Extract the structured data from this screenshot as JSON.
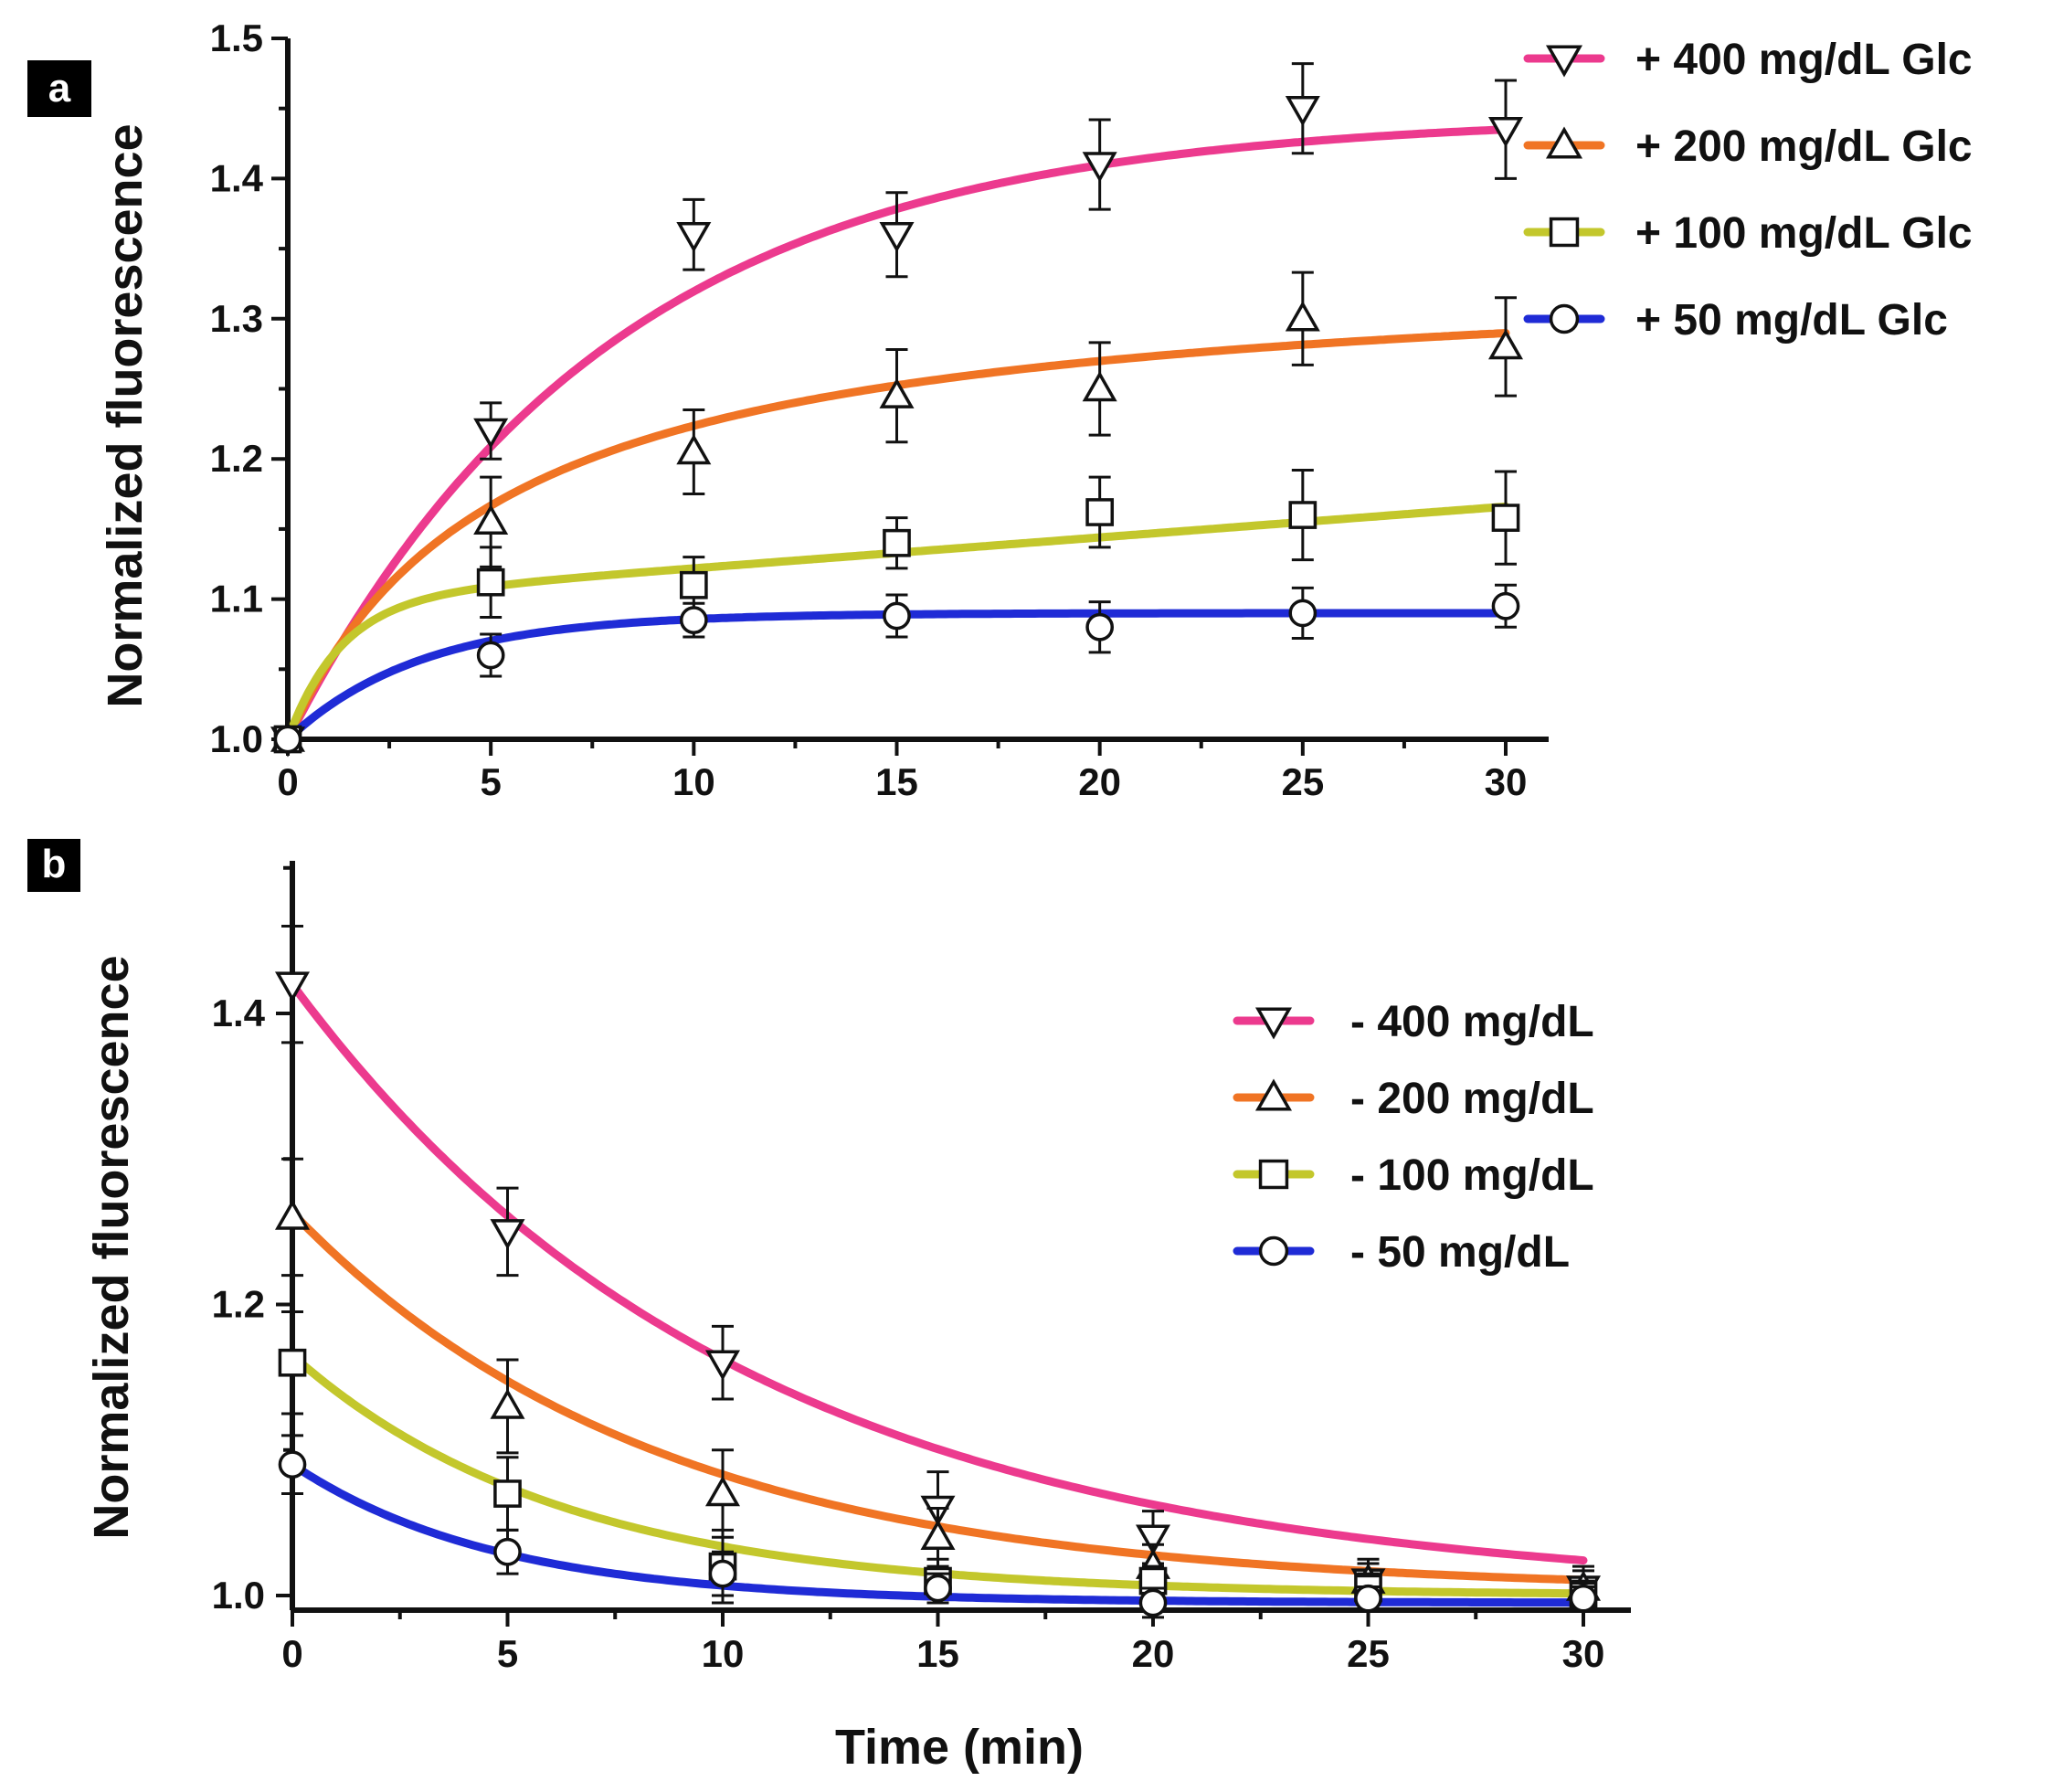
{
  "figure": {
    "xlabel_shared": "Time (min)"
  },
  "chart_data": [
    {
      "type": "line",
      "panel_label": "a",
      "title": "",
      "xlabel": "",
      "ylabel": "Normalized fluorescence",
      "xlim": [
        0,
        31
      ],
      "ylim": [
        1.0,
        1.5
      ],
      "xticks": [
        0,
        5,
        10,
        15,
        20,
        25,
        30
      ],
      "xtick_labels": [
        "0",
        "5",
        "10",
        "15",
        "20",
        "25",
        "30"
      ],
      "yticks": [
        1.0,
        1.1,
        1.2,
        1.3,
        1.4,
        1.5
      ],
      "ytick_labels": [
        "1.0",
        "1.1",
        "1.2",
        "1.3",
        "1.4",
        "1.5"
      ],
      "grid": false,
      "legend_position": "top-right",
      "x": [
        0,
        5,
        10,
        15,
        20,
        25,
        30
      ],
      "series": [
        {
          "name": "+ 400 mg/dL Glc",
          "color": "#ec3a8e",
          "marker": "triangle-down",
          "values": [
            1.0,
            1.22,
            1.36,
            1.36,
            1.41,
            1.45,
            1.435
          ],
          "errors": [
            0,
            0.02,
            0.025,
            0.03,
            0.032,
            0.032,
            0.035
          ],
          "fit": {
            "model": "a + b*(1-exp(-t/tau))",
            "a": 1.0,
            "b": 0.445,
            "tau": 7.9
          }
        },
        {
          "name": "+ 200 mg/dL Glc",
          "color": "#f07424",
          "marker": "triangle-up",
          "values": [
            1.0,
            1.155,
            1.205,
            1.245,
            1.25,
            1.3,
            1.28
          ],
          "errors": [
            0,
            0.032,
            0.03,
            0.033,
            0.033,
            0.033,
            0.035
          ],
          "fit": {
            "model": "a + b*t/(k+t)",
            "a": 1.0,
            "b": 0.34,
            "k": 5.2
          }
        },
        {
          "name": "+ 100 mg/dL Glc",
          "color": "#c3c72c",
          "marker": "square",
          "values": [
            1.0,
            1.112,
            1.11,
            1.14,
            1.162,
            1.16,
            1.158
          ],
          "errors": [
            0,
            0.025,
            0.02,
            0.018,
            0.025,
            0.032,
            0.033
          ],
          "fit": {
            "model": "a + b*(1-exp(-t/tau)) + c*t",
            "a": 1.0,
            "b": 0.1,
            "tau": 1.3,
            "c": 0.0022
          }
        },
        {
          "name": "+ 50 mg/dL Glc",
          "color": "#1f2bd6",
          "marker": "circle",
          "values": [
            1.0,
            1.06,
            1.085,
            1.088,
            1.08,
            1.09,
            1.095
          ],
          "errors": [
            0,
            0.015,
            0.012,
            0.015,
            0.018,
            0.018,
            0.015
          ],
          "fit": {
            "model": "a + b*(1-exp(-t/tau))",
            "a": 1.0,
            "b": 0.09,
            "tau": 3.3
          }
        }
      ]
    },
    {
      "type": "line",
      "panel_label": "b",
      "title": "",
      "xlabel": "Time (min)",
      "ylabel": "Normalized fluorescence",
      "xlim": [
        0,
        31
      ],
      "ylim": [
        0.98,
        1.51
      ],
      "xticks": [
        0,
        5,
        10,
        15,
        20,
        25,
        30
      ],
      "xtick_labels": [
        "0",
        "5",
        "10",
        "15",
        "20",
        "25",
        "30"
      ],
      "yticks": [
        1.0,
        1.2,
        1.4
      ],
      "ytick_labels": [
        "1.0",
        "1.2",
        "1.4"
      ],
      "grid": false,
      "legend_position": "right",
      "x": [
        0,
        5,
        10,
        15,
        20,
        25,
        30
      ],
      "series": [
        {
          "name": "- 400 mg/dL",
          "color": "#ec3a8e",
          "marker": "triangle-down",
          "values": [
            1.42,
            1.25,
            1.16,
            1.06,
            1.04,
            1.01,
            1.005
          ],
          "errors": [
            0.04,
            0.03,
            0.025,
            0.025,
            0.018,
            0.015,
            0.015
          ],
          "fit": {
            "model": "a + b*exp(-t/tau)",
            "a": 1.0,
            "b": 0.42,
            "tau": 10.5
          }
        },
        {
          "name": "- 200 mg/dL",
          "color": "#f07424",
          "marker": "triangle-up",
          "values": [
            1.26,
            1.13,
            1.07,
            1.04,
            1.02,
            1.01,
            1.005
          ],
          "errors": [
            0.04,
            0.032,
            0.03,
            0.02,
            0.015,
            0.012,
            0.012
          ],
          "fit": {
            "model": "a + b*exp(-t/tau)",
            "a": 1.003,
            "b": 0.26,
            "tau": 8.5
          }
        },
        {
          "name": "- 100 mg/dL",
          "color": "#c3c72c",
          "marker": "square",
          "values": [
            1.16,
            1.07,
            1.02,
            1.01,
            1.01,
            1.005,
            1.0
          ],
          "errors": [
            0.035,
            0.025,
            0.025,
            0.015,
            0.01,
            0.01,
            0.01
          ],
          "fit": {
            "model": "a + b*exp(-t/tau)",
            "a": 1.0,
            "b": 0.165,
            "tau": 6.3
          }
        },
        {
          "name": "- 50 mg/dL",
          "color": "#1f2bd6",
          "marker": "circle",
          "values": [
            1.09,
            1.03,
            1.015,
            1.005,
            0.995,
            0.998,
            0.998
          ],
          "errors": [
            0.02,
            0.015,
            0.015,
            0.01,
            0.01,
            0.008,
            0.008
          ],
          "fit": {
            "model": "a + b*exp(-t/tau)",
            "a": 0.995,
            "b": 0.095,
            "tau": 4.8
          }
        }
      ]
    }
  ]
}
